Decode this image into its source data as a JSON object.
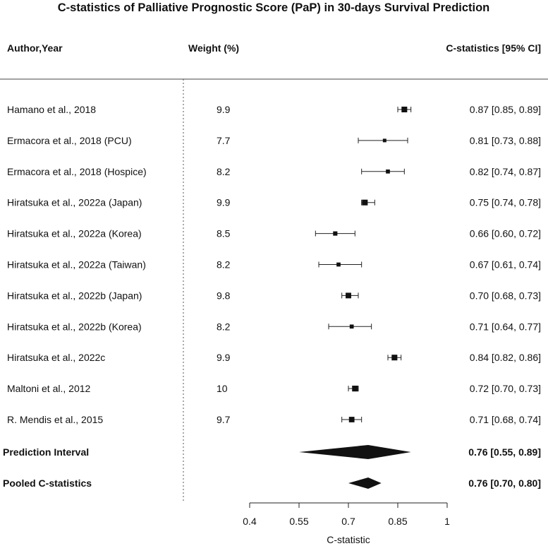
{
  "chart_data": {
    "type": "forest",
    "title": "C-statistics of Palliative Prognostic Score (PaP) in 30-days Survival Prediction",
    "headers": {
      "author": "Author,Year",
      "weight": "Weight (%)",
      "cstat": "C-statistics [95% CI]"
    },
    "xlabel": "C-statistic",
    "xlim": [
      0.4,
      1.0
    ],
    "xticks": [
      0.4,
      0.55,
      0.7,
      0.85,
      1.0
    ],
    "xtick_labels": [
      "0.4",
      "0.55",
      "0.7",
      "0.85",
      "1"
    ],
    "studies": [
      {
        "author": "Hamano et al., 2018",
        "weight": "9.9",
        "est": 0.87,
        "lo": 0.85,
        "hi": 0.89,
        "ci_text": "0.87 [0.85, 0.89]"
      },
      {
        "author": "Ermacora et al., 2018 (PCU)",
        "weight": "7.7",
        "est": 0.81,
        "lo": 0.73,
        "hi": 0.88,
        "ci_text": "0.81 [0.73, 0.88]"
      },
      {
        "author": "Ermacora et al., 2018 (Hospice)",
        "weight": "8.2",
        "est": 0.82,
        "lo": 0.74,
        "hi": 0.87,
        "ci_text": "0.82 [0.74, 0.87]"
      },
      {
        "author": "Hiratsuka et al., 2022a (Japan)",
        "weight": "9.9",
        "est": 0.75,
        "lo": 0.74,
        "hi": 0.78,
        "ci_text": "0.75 [0.74, 0.78]"
      },
      {
        "author": "Hiratsuka et al., 2022a (Korea)",
        "weight": "8.5",
        "est": 0.66,
        "lo": 0.6,
        "hi": 0.72,
        "ci_text": "0.66 [0.60, 0.72]"
      },
      {
        "author": "Hiratsuka et al., 2022a (Taiwan)",
        "weight": "8.2",
        "est": 0.67,
        "lo": 0.61,
        "hi": 0.74,
        "ci_text": "0.67 [0.61, 0.74]"
      },
      {
        "author": "Hiratsuka et al., 2022b (Japan)",
        "weight": "9.8",
        "est": 0.7,
        "lo": 0.68,
        "hi": 0.73,
        "ci_text": "0.70 [0.68, 0.73]"
      },
      {
        "author": "Hiratsuka et al., 2022b (Korea)",
        "weight": "8.2",
        "est": 0.71,
        "lo": 0.64,
        "hi": 0.77,
        "ci_text": "0.71 [0.64, 0.77]"
      },
      {
        "author": "Hiratsuka et al., 2022c",
        "weight": "9.9",
        "est": 0.84,
        "lo": 0.82,
        "hi": 0.86,
        "ci_text": "0.84 [0.82, 0.86]"
      },
      {
        "author": "Maltoni et al., 2012",
        "weight": "10",
        "est": 0.72,
        "lo": 0.7,
        "hi": 0.73,
        "ci_text": "0.72 [0.70, 0.73]"
      },
      {
        "author": "R. Mendis et al., 2015",
        "weight": "9.7",
        "est": 0.71,
        "lo": 0.68,
        "hi": 0.74,
        "ci_text": "0.71 [0.68, 0.74]"
      }
    ],
    "summaries": [
      {
        "label": "Prediction Interval",
        "est": 0.76,
        "lo": 0.55,
        "hi": 0.89,
        "ci_text": "0.76 [0.55, 0.89]"
      },
      {
        "label": "Pooled C-statistics",
        "est": 0.76,
        "lo": 0.7,
        "hi": 0.8,
        "ci_text": "0.76 [0.70, 0.80]"
      }
    ]
  }
}
